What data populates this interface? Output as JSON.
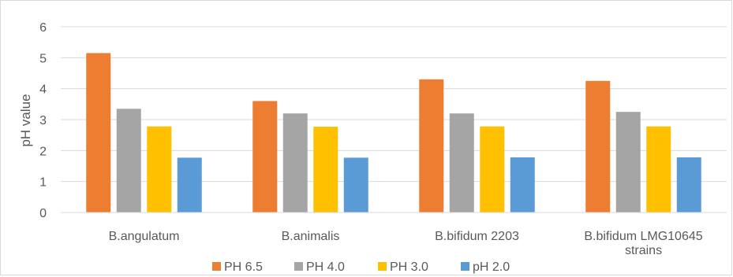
{
  "chart_data": {
    "type": "bar",
    "title": "",
    "xlabel": "",
    "ylabel": "pH value",
    "ylim": [
      0,
      6
    ],
    "yticks": [
      "0",
      "1",
      "2",
      "3",
      "4",
      "5",
      "6"
    ],
    "grid": true,
    "legend_position": "bottom",
    "categories": [
      "B.angulatum",
      "B.animalis",
      "B.bifidum 2203",
      "B.bifidum LMG10645 strains"
    ],
    "category_lines": [
      [
        "B.angulatum"
      ],
      [
        "B.animalis"
      ],
      [
        "B.bifidum 2203"
      ],
      [
        "B.bifidum LMG10645",
        "strains"
      ]
    ],
    "series": [
      {
        "name": "PH 6.5",
        "color": "#ED7D31",
        "values": [
          5.15,
          3.6,
          4.3,
          4.25
        ]
      },
      {
        "name": "PH 4.0",
        "color": "#A5A5A5",
        "values": [
          3.35,
          3.2,
          3.2,
          3.25
        ]
      },
      {
        "name": "PH 3.0",
        "color": "#FFC000",
        "values": [
          2.78,
          2.77,
          2.78,
          2.78
        ]
      },
      {
        "name": "pH 2.0",
        "color": "#5B9BD5",
        "values": [
          1.77,
          1.77,
          1.78,
          1.78
        ]
      }
    ]
  }
}
